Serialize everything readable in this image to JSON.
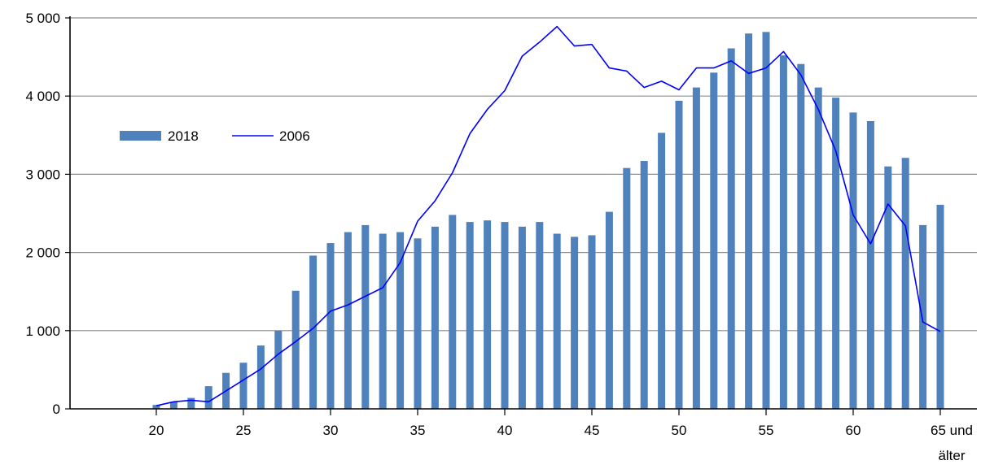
{
  "chart_data": {
    "type": "bar",
    "x_start": 20,
    "x_tick_labels": [
      "20",
      "25",
      "30",
      "35",
      "40",
      "45",
      "50",
      "55",
      "60",
      "65 und",
      "älter"
    ],
    "y_tick_labels": [
      "0",
      "1 000",
      "2 000",
      "3 000",
      "4 000",
      "5 000"
    ],
    "ylim": [
      0,
      5000
    ],
    "grid": true,
    "legend_position": "left",
    "series": [
      {
        "name": "2018",
        "kind": "bar",
        "color": "#4f81bd",
        "values": [
          50,
          90,
          140,
          290,
          460,
          590,
          810,
          1000,
          1510,
          1960,
          2120,
          2260,
          2350,
          2240,
          2260,
          2180,
          2330,
          2480,
          2390,
          2410,
          2390,
          2330,
          2390,
          2240,
          2200,
          2220,
          2520,
          3080,
          3170,
          3530,
          3940,
          4110,
          4300,
          4610,
          4800,
          4820,
          4520,
          4410,
          4110,
          3980,
          3790,
          3680,
          3100,
          3210,
          2350,
          2610
        ]
      },
      {
        "name": "2006",
        "kind": "line",
        "color": "#0000ff",
        "values": [
          40,
          90,
          110,
          90,
          230,
          370,
          510,
          700,
          860,
          1030,
          1250,
          1330,
          1440,
          1550,
          1870,
          2400,
          2660,
          3020,
          3520,
          3830,
          4070,
          4510,
          4690,
          4890,
          4640,
          4660,
          4360,
          4320,
          4110,
          4190,
          4080,
          4360,
          4360,
          4450,
          4290,
          4360,
          4570,
          4270,
          3830,
          3300,
          2480,
          2110,
          2620,
          2340,
          1110,
          990
        ]
      }
    ]
  }
}
